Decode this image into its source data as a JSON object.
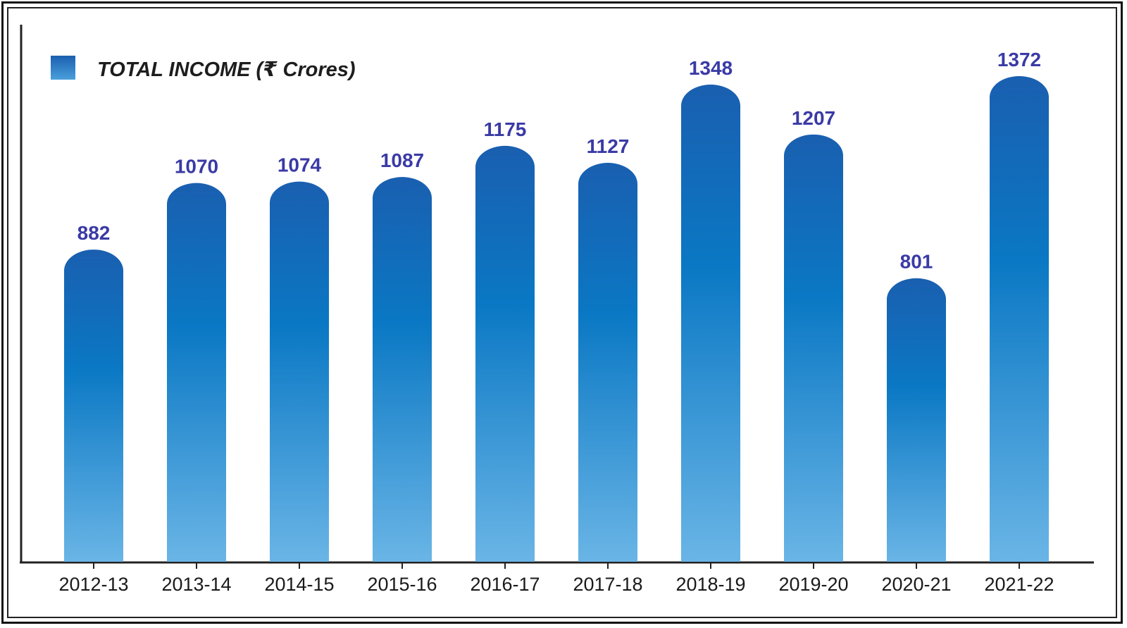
{
  "chart_data": {
    "type": "bar",
    "categories": [
      "2012-13",
      "2013-14",
      "2014-15",
      "2015-16",
      "2016-17",
      "2017-18",
      "2018-19",
      "2019-20",
      "2020-21",
      "2021-22"
    ],
    "series": [
      {
        "name": "TOTAL INCOME (₹ Crores)",
        "values": [
          882,
          1070,
          1074,
          1087,
          1175,
          1127,
          1348,
          1207,
          801,
          1372
        ]
      }
    ],
    "title": "",
    "xlabel": "",
    "ylabel": "",
    "ylim": [
      0,
      1500
    ],
    "grid": false,
    "legend_position": "top-left",
    "colors": {
      "bar_top": "#1a5fb0",
      "bar_mid": "#0a78c4",
      "bar_bottom": "#6ab5e6",
      "value_label": "#3a3aa6",
      "axis": "#222222"
    }
  }
}
